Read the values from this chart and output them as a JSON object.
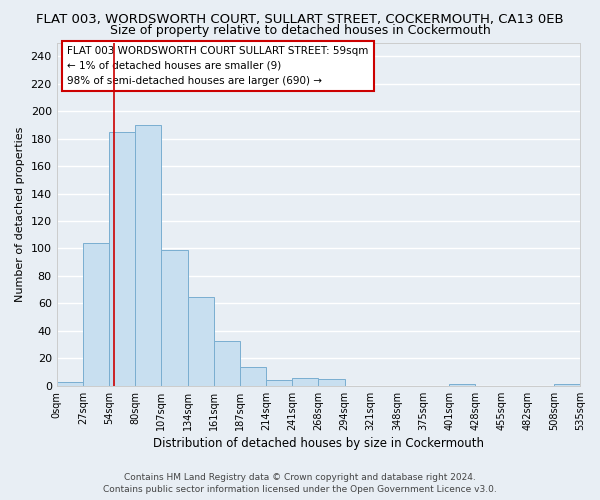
{
  "title": "FLAT 003, WORDSWORTH COURT, SULLART STREET, COCKERMOUTH, CA13 0EB",
  "subtitle": "Size of property relative to detached houses in Cockermouth",
  "xlabel": "Distribution of detached houses by size in Cockermouth",
  "ylabel": "Number of detached properties",
  "bin_edges": [
    0,
    27,
    54,
    81,
    108,
    135,
    162,
    189,
    216,
    243,
    270,
    297,
    324,
    351,
    378,
    405,
    432,
    459,
    486,
    513,
    540
  ],
  "bar_heights": [
    3,
    104,
    185,
    190,
    99,
    65,
    33,
    14,
    4,
    6,
    5,
    0,
    0,
    0,
    0,
    1,
    0,
    0,
    0,
    1
  ],
  "bar_color": "#c8dff0",
  "bar_edgecolor": "#7aaed0",
  "vline_x": 59,
  "vline_color": "#cc0000",
  "ylim": [
    0,
    250
  ],
  "yticks": [
    0,
    20,
    40,
    60,
    80,
    100,
    120,
    140,
    160,
    180,
    200,
    220,
    240
  ],
  "xtick_labels": [
    "0sqm",
    "27sqm",
    "54sqm",
    "80sqm",
    "107sqm",
    "134sqm",
    "161sqm",
    "187sqm",
    "214sqm",
    "241sqm",
    "268sqm",
    "294sqm",
    "321sqm",
    "348sqm",
    "375sqm",
    "401sqm",
    "428sqm",
    "455sqm",
    "482sqm",
    "508sqm",
    "535sqm"
  ],
  "annotation_title": "FLAT 003 WORDSWORTH COURT SULLART STREET: 59sqm",
  "annotation_line1": "← 1% of detached houses are smaller (9)",
  "annotation_line2": "98% of semi-detached houses are larger (690) →",
  "annotation_box_color": "#ffffff",
  "annotation_box_edgecolor": "#cc0000",
  "footer1": "Contains HM Land Registry data © Crown copyright and database right 2024.",
  "footer2": "Contains public sector information licensed under the Open Government Licence v3.0.",
  "background_color": "#e8eef4",
  "plot_bg_color": "#e8eef4",
  "grid_color": "#ffffff",
  "title_fontsize": 9.5,
  "subtitle_fontsize": 9,
  "xlabel_fontsize": 8.5,
  "ylabel_fontsize": 8,
  "footer_fontsize": 6.5
}
